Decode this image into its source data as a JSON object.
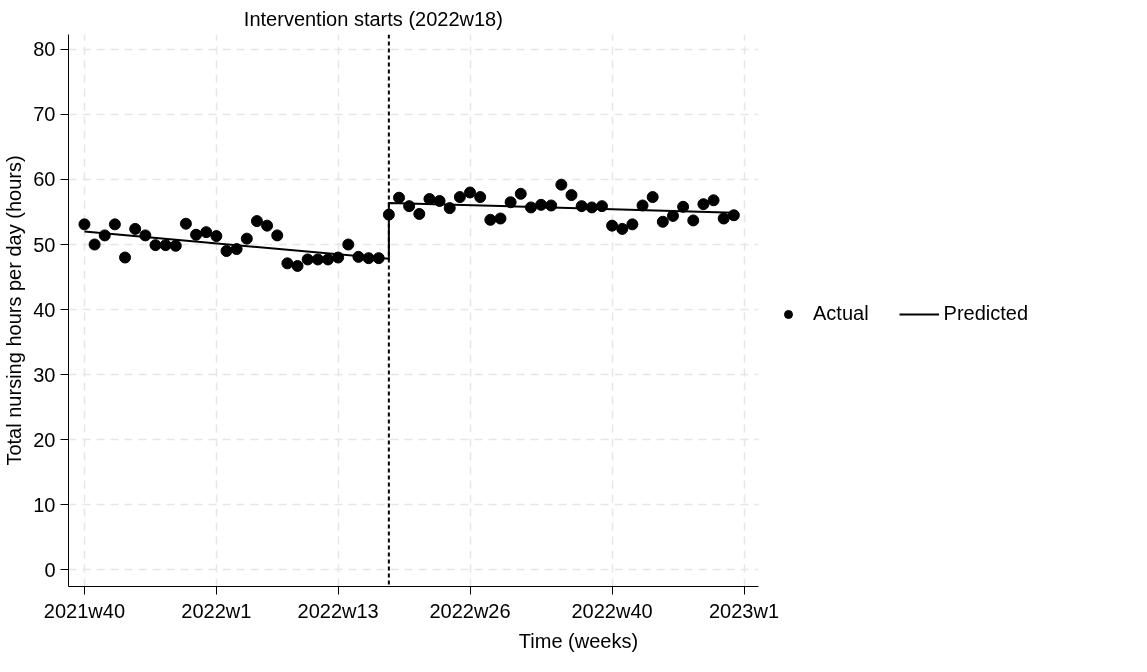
{
  "chart_data": {
    "type": "scatter",
    "xlabel": "Time (weeks)",
    "ylabel": "Total nursing hours per day (hours)",
    "xlim": [
      "2021-09-23",
      "2023-01-12"
    ],
    "ylim": [
      -2.6,
      82.3
    ],
    "xticks": [
      {
        "value": "2021-10-04",
        "label": "2021w40"
      },
      {
        "value": "2022-01-03",
        "label": "2022w1"
      },
      {
        "value": "2022-03-28",
        "label": "2022w13"
      },
      {
        "value": "2022-06-27",
        "label": "2022w26"
      },
      {
        "value": "2022-10-03",
        "label": "2022w40"
      },
      {
        "value": "2023-01-02",
        "label": "2023w1"
      }
    ],
    "yticks": [
      0,
      10,
      20,
      30,
      40,
      50,
      60,
      70,
      80
    ],
    "grid": true,
    "legend": "right",
    "marker": "circle",
    "ref_lines": [
      {
        "axis": "x",
        "value": "2022-05-02",
        "label": "Intervention starts (2022w18)",
        "color": "#000000",
        "line_style": "dashed"
      }
    ],
    "series": [
      {
        "name": "Actual",
        "color": "#000000",
        "x": [
          "2021-10-04",
          "2021-10-11",
          "2021-10-18",
          "2021-10-25",
          "2021-11-01",
          "2021-11-08",
          "2021-11-15",
          "2021-11-22",
          "2021-11-29",
          "2021-12-06",
          "2021-12-13",
          "2021-12-20",
          "2021-12-27",
          "2022-01-03",
          "2022-01-10",
          "2022-01-17",
          "2022-01-24",
          "2022-01-31",
          "2022-02-07",
          "2022-02-14",
          "2022-02-21",
          "2022-02-28",
          "2022-03-07",
          "2022-03-14",
          "2022-03-21",
          "2022-03-28",
          "2022-04-04",
          "2022-04-11",
          "2022-04-18",
          "2022-04-25",
          "2022-05-02",
          "2022-05-09",
          "2022-05-16",
          "2022-05-23",
          "2022-05-30",
          "2022-06-06",
          "2022-06-13",
          "2022-06-20",
          "2022-06-27",
          "2022-07-04",
          "2022-07-11",
          "2022-07-18",
          "2022-07-25",
          "2022-08-01",
          "2022-08-08",
          "2022-08-15",
          "2022-08-22",
          "2022-08-29",
          "2022-09-05",
          "2022-09-12",
          "2022-09-19",
          "2022-09-26",
          "2022-10-03",
          "2022-10-10",
          "2022-10-17",
          "2022-10-24",
          "2022-10-31",
          "2022-11-07",
          "2022-11-14",
          "2022-11-21",
          "2022-11-28",
          "2022-12-05",
          "2022-12-12",
          "2022-12-19",
          "2022-12-26"
        ],
        "values": [
          53.1,
          50.0,
          51.4,
          53.1,
          48.0,
          52.4,
          51.4,
          49.9,
          49.9,
          49.8,
          53.2,
          51.5,
          51.9,
          51.3,
          49.0,
          49.3,
          50.9,
          53.6,
          52.9,
          51.4,
          47.1,
          46.7,
          47.7,
          47.7,
          47.7,
          48.0,
          50.0,
          48.1,
          47.9,
          47.9,
          54.6,
          57.2,
          55.9,
          54.7,
          57.0,
          56.7,
          55.6,
          57.3,
          58.0,
          57.3,
          53.8,
          54.0,
          56.5,
          57.8,
          55.7,
          56.1,
          56.0,
          59.2,
          57.6,
          55.9,
          55.7,
          55.9,
          52.9,
          52.4,
          53.1,
          56.0,
          57.3,
          53.5,
          54.4,
          55.8,
          53.7,
          56.2,
          56.8,
          54.0,
          54.5
        ]
      },
      {
        "name": "Predicted",
        "type": "line",
        "color": "#000000",
        "line_style": "solid",
        "marker": "none",
        "x": [
          "2021-10-04",
          "2022-05-02",
          "2022-05-02",
          "2022-12-26"
        ],
        "values": [
          52.0,
          47.8,
          56.4,
          54.9
        ]
      }
    ]
  }
}
